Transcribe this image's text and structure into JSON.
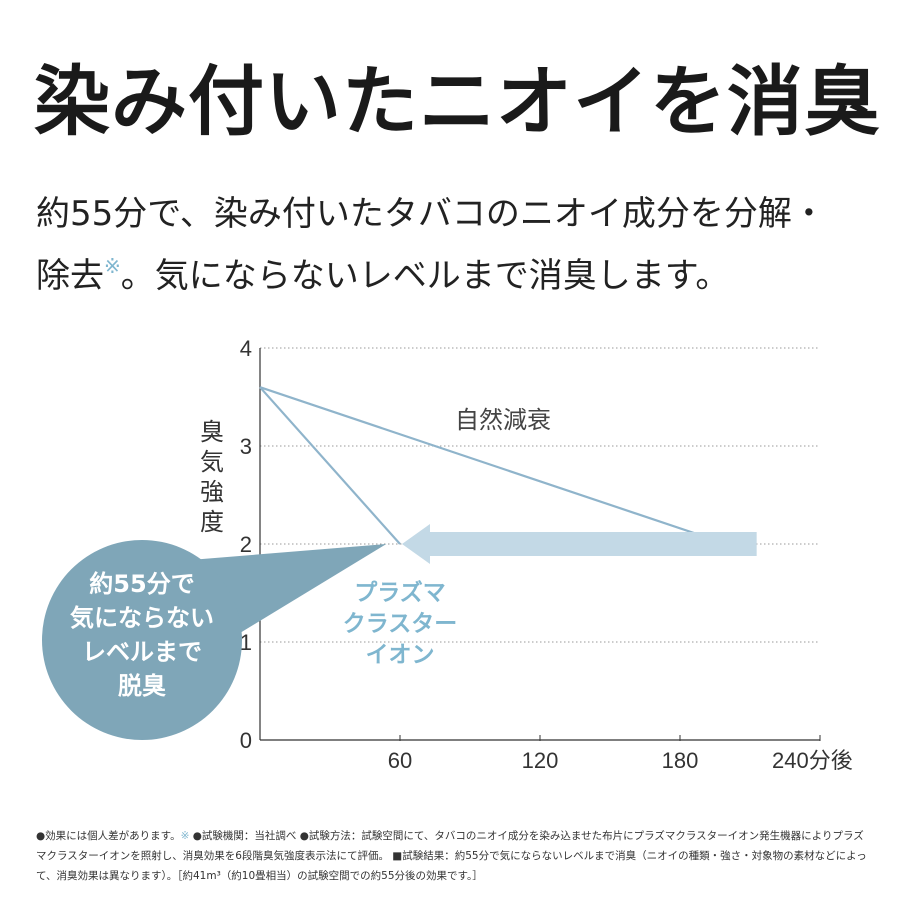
{
  "headline": "染み付いたニオイを消臭",
  "lead_line1": "約55分で、染み付いたタバコのニオイ成分を分解・",
  "lead_line2_a": "除去",
  "lead_mark": "※",
  "lead_line2_b": "。気にならないレベルまで消臭します。",
  "chart_data": {
    "type": "line",
    "ylabel": "臭気強度",
    "x_ticks": [
      "60",
      "120",
      "180",
      "240分後"
    ],
    "y_ticks": [
      "0",
      "1",
      "2",
      "3",
      "4"
    ],
    "xlim": [
      0,
      240
    ],
    "ylim": [
      0,
      4
    ],
    "grid": true,
    "series": [
      {
        "name": "自然減衰",
        "x": [
          0,
          200
        ],
        "y": [
          3.6,
          2.0
        ]
      },
      {
        "name": "プラズマクラスターイオン",
        "x": [
          0,
          60
        ],
        "y": [
          3.6,
          2.0
        ]
      }
    ],
    "arrow": {
      "from_x": 200,
      "to_x": 60,
      "y": 2.0
    },
    "callout": {
      "lines": [
        "約55分で",
        "気にならない",
        "レベルまで",
        "脱臭"
      ],
      "point_x": 55,
      "point_y": 2.0
    },
    "plasma_label_lines": [
      "プラズマ",
      "クラスター",
      "イオン"
    ],
    "colors": {
      "line": "#8fb4cb",
      "arrow": "#c3d9e6",
      "bubble": "#7fa6b8",
      "grid": "#9a9a9a"
    }
  },
  "footnote": {
    "a": "●効果には個人差があります。",
    "mark": "※",
    "b": " ●試験機関：当社調べ ●試験方法：試験空間にて、タバコのニオイ成分を染み込ませた布片にプラズマクラスターイオン発生機器によりプラズマクラスターイオンを照射し、消臭効果を6段階臭気強度表示法にて評価。 ■試験結果：約55分で気にならないレベルまで消臭（ニオイの種類・強さ・対象物の素材などによって、消臭効果は異なります）。［約41m³（約10畳相当）の試験空間での約55分後の効果です。］"
  }
}
